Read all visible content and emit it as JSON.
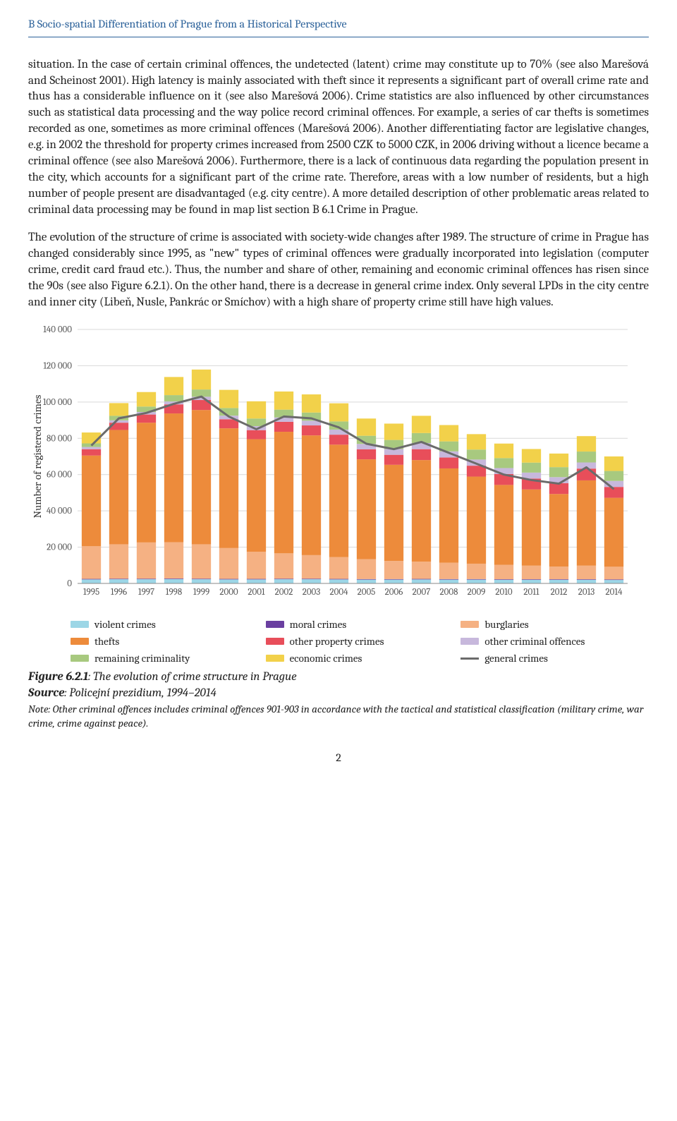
{
  "header": "B Socio-spatial Differentiation of Prague from a Historical Perspective",
  "para1": "situation. In the case of certain criminal offences, the undetected (latent) crime may constitute up to 70% (see also Marešová and Scheinost 2001). High latency is mainly associated with theft since it represents a significant part of overall crime rate and thus has a considerable influence on it (see also Marešová 2006). Crime statistics are also influenced by other circumstances such as statistical data processing and the way police record criminal offences. For example, a series of car thefts is sometimes recorded as one, sometimes as more criminal offences (Marešová 2006). Another differentiating factor are legislative changes, e.g. in 2002 the threshold for property crimes increased from 2500 CZK to 5000 CZK, in 2006 driving without a licence became a criminal offence (see also Marešová 2006). Furthermore, there is a lack of continuous data regarding the population present in the city, which accounts for a significant part of the crime rate. Therefore, areas with a low number of residents, but a high number of people present are disadvantaged (e.g. city centre). A more detailed description of other problematic areas related to criminal data processing may be found in map list section B 6.1 Crime in Prague.",
  "para2": "The evolution of the structure of crime is associated with society-wide changes after 1989. The structure of crime in Prague has changed considerably since 1995, as \"new\" types of criminal offences were gradually incorporated into legislation (computer crime, credit card fraud etc.). Thus, the number and share of other, remaining and economic criminal offences has risen since the 90s (see also Figure 6.2.1).  On the other hand, there is a decrease in general crime index. Only several LPDs in the city centre and inner city (Libeň, Nusle, Pankrác or Smíchov) with a high share of property crime still have high values.",
  "figure_title_bold": "Figure 6.2.1",
  "figure_title_rest": ": The evolution of crime structure in Prague",
  "figure_source_bold": "Source",
  "figure_source_rest": ": Policejní prezidium, 1994–2014",
  "figure_note": "Note: Other criminal offences includes criminal offences 901-903 in accordance with the tactical and statistical classification (military crime, war crime, crime against peace).",
  "page_number": "2",
  "chart": {
    "type": "stacked-bar-with-line",
    "y_label": "Number of registered crimes",
    "y_label_fontsize": 15,
    "axis_fontsize": 13,
    "background": "#ffffff",
    "grid_color": "#d9d9d9",
    "ylim": [
      0,
      140000
    ],
    "ytick_step": 20000,
    "yticks": [
      "0",
      "20 000",
      "40 000",
      "60 000",
      "80 000",
      "100 000",
      "120 000",
      "140 000"
    ],
    "categories": [
      "1995",
      "1996",
      "1997",
      "1998",
      "1999",
      "2000",
      "2001",
      "2002",
      "2003",
      "2004",
      "2005",
      "2006",
      "2007",
      "2008",
      "2009",
      "2010",
      "2011",
      "2012",
      "2013",
      "2014"
    ],
    "series_order": [
      "violent",
      "moral",
      "burglaries",
      "thefts",
      "other_property",
      "other_offences",
      "remaining",
      "economic"
    ],
    "series": {
      "violent": {
        "label": "violent crimes",
        "color": "#9cd6e6",
        "values": [
          2200,
          2300,
          2300,
          2400,
          2300,
          2200,
          2200,
          2300,
          2300,
          2200,
          2100,
          2100,
          2200,
          2100,
          2100,
          2000,
          2000,
          2000,
          2000,
          1900
        ]
      },
      "moral": {
        "label": "moral crimes",
        "color": "#6a3fa0",
        "values": [
          300,
          300,
          300,
          300,
          300,
          300,
          300,
          300,
          300,
          300,
          300,
          300,
          300,
          300,
          300,
          300,
          300,
          300,
          300,
          300
        ]
      },
      "burglaries": {
        "label": "burglaries",
        "color": "#f5b183",
        "values": [
          18000,
          19000,
          20000,
          20000,
          19000,
          17000,
          15000,
          14000,
          13000,
          12000,
          11000,
          10000,
          9500,
          9000,
          8500,
          8000,
          7500,
          7000,
          7500,
          7000
        ]
      },
      "thefts": {
        "label": "thefts",
        "color": "#ed8b3b",
        "values": [
          50000,
          63000,
          66000,
          71000,
          74000,
          66000,
          62000,
          67000,
          66000,
          62000,
          55000,
          53000,
          56000,
          52000,
          48000,
          44000,
          42000,
          40000,
          47000,
          38000
        ]
      },
      "other_property": {
        "label": "other property crimes",
        "color": "#e84e5a",
        "values": [
          3500,
          4000,
          4500,
          5000,
          5500,
          5000,
          5000,
          5500,
          5500,
          5500,
          5500,
          5500,
          6000,
          6000,
          6000,
          6000,
          6000,
          6000,
          6500,
          6000
        ]
      },
      "other_offences": {
        "label": "other criminal offences",
        "color": "#c7b8dc",
        "values": [
          1200,
          1300,
          1400,
          1600,
          1800,
          2000,
          2200,
          2400,
          2600,
          2800,
          3000,
          3200,
          3400,
          3400,
          3400,
          3300,
          3300,
          3300,
          3400,
          3300
        ]
      },
      "remaining": {
        "label": "remaining criminality",
        "color": "#a8c97f",
        "values": [
          2000,
          2500,
          3000,
          3500,
          4000,
          4200,
          4200,
          4300,
          4500,
          4500,
          4500,
          5000,
          5500,
          5500,
          5500,
          5500,
          5500,
          5500,
          6000,
          5500
        ]
      },
      "economic": {
        "label": "economic crimes",
        "color": "#f2d14a",
        "values": [
          6000,
          7000,
          8000,
          10000,
          11000,
          10000,
          9500,
          10000,
          10000,
          10000,
          9500,
          9000,
          9500,
          9000,
          8500,
          8000,
          7500,
          7500,
          8500,
          8000
        ]
      }
    },
    "line": {
      "label": "general crimes",
      "color": "#6b6b6b",
      "values": [
        76000,
        91000,
        94000,
        99000,
        103000,
        92000,
        85000,
        92000,
        91000,
        86000,
        77000,
        74000,
        78000,
        72000,
        66000,
        60000,
        57000,
        55000,
        64000,
        52000
      ]
    }
  },
  "legend_items": [
    {
      "key": "violent",
      "type": "box"
    },
    {
      "key": "moral",
      "type": "box"
    },
    {
      "key": "burglaries",
      "type": "box"
    },
    {
      "key": "thefts",
      "type": "box"
    },
    {
      "key": "other_property",
      "type": "box"
    },
    {
      "key": "other_offences",
      "type": "box"
    },
    {
      "key": "remaining",
      "type": "box"
    },
    {
      "key": "economic",
      "type": "box"
    },
    {
      "key": "line",
      "type": "line"
    }
  ]
}
